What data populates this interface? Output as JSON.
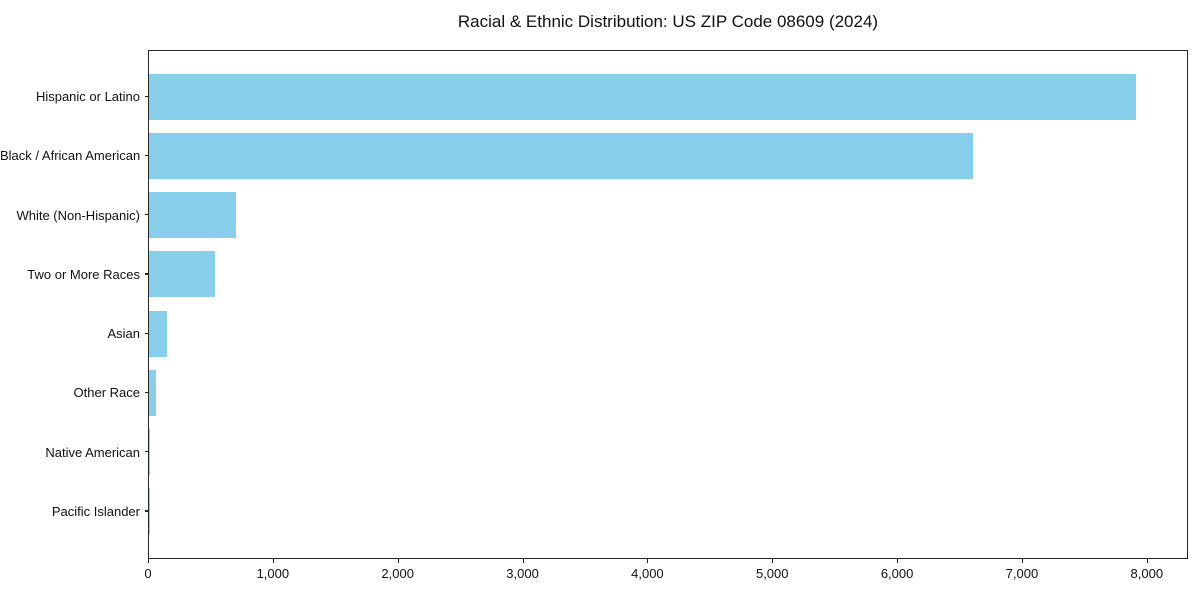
{
  "chart_data": {
    "type": "bar",
    "orientation": "horizontal",
    "title": "Racial & Ethnic Distribution: US ZIP Code 08609 (2024)",
    "xlabel": "",
    "ylabel": "",
    "categories": [
      "Hispanic or Latino",
      "Black / African American",
      "White (Non-Hispanic)",
      "Two or More Races",
      "Asian",
      "Other Race",
      "Native American",
      "Pacific Islander"
    ],
    "values": [
      7915,
      6605,
      695,
      527,
      142,
      54,
      10,
      2
    ],
    "xlim": [
      0,
      8330
    ],
    "xticks": [
      0,
      1000,
      2000,
      3000,
      4000,
      5000,
      6000,
      7000,
      8000
    ],
    "xtick_labels": [
      "0",
      "1,000",
      "2,000",
      "3,000",
      "4,000",
      "5,000",
      "6,000",
      "7,000",
      "8,000"
    ],
    "grid": false,
    "legend": null,
    "bar_color": "#87CEEB",
    "axis_color": "#262626"
  }
}
